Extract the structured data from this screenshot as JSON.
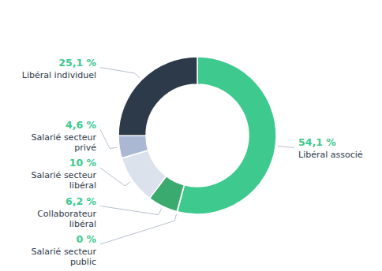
{
  "chart_data": {
    "type": "donut",
    "categories": [
      "Libéral associé",
      "Salarié secteur\npublic",
      "Collaborateur\nlibéral",
      "Salarié secteur\nlibéral",
      "Salarié secteur\nprivé",
      "Libéral individuel"
    ],
    "values": [
      54.1,
      0.05,
      6.2,
      10.0,
      4.6,
      25.05
    ],
    "value_labels": [
      "54,1 %",
      "0 %",
      "6,2 %",
      "10 %",
      "4,6 %",
      "25,1 %"
    ],
    "colors": [
      "#3ec98e",
      "#3ec98e",
      "#3aaa6e",
      "#dce2ec",
      "#aab8d4",
      "#2d3a4a"
    ],
    "data_labels": true
  }
}
